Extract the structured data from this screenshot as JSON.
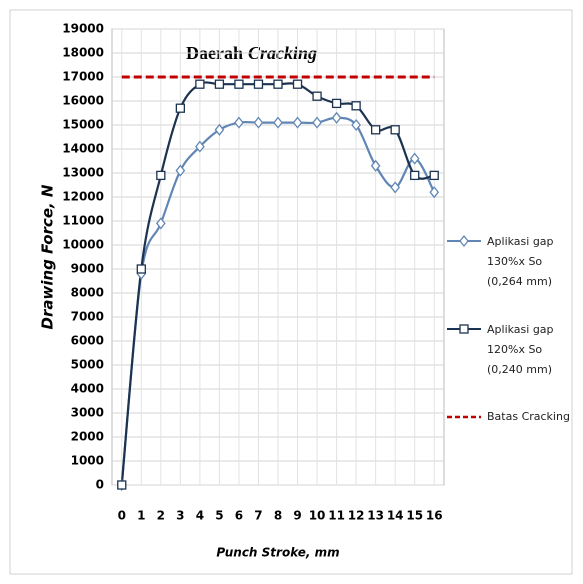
{
  "chart_data": {
    "type": "line",
    "annotation": [
      "Daerah",
      "Cracking"
    ],
    "x_label": "Punch Stroke, mm",
    "y_label": "Drawing Force, N",
    "x": [
      0,
      1,
      2,
      3,
      4,
      5,
      6,
      7,
      8,
      9,
      10,
      11,
      12,
      13,
      14,
      15,
      16
    ],
    "xlim": [
      -0.5,
      16.5
    ],
    "xticks": [
      0,
      1,
      2,
      3,
      4,
      5,
      6,
      7,
      8,
      9,
      10,
      11,
      12,
      13,
      14,
      15,
      16
    ],
    "ylim": [
      0,
      19000
    ],
    "yticks": [
      0,
      1000,
      2000,
      3000,
      4000,
      5000,
      6000,
      7000,
      8000,
      9000,
      10000,
      11000,
      12000,
      13000,
      14000,
      15000,
      16000,
      17000,
      18000,
      19000
    ],
    "grid": true,
    "series": [
      {
        "name": "Aplikasi gap 130%x So (0,264 mm)",
        "color": "#6186b5",
        "marker": "diamond",
        "values": [
          0,
          8800,
          10900,
          13100,
          14100,
          14800,
          15100,
          15100,
          15100,
          15100,
          15100,
          15300,
          15000,
          13300,
          12400,
          13600,
          12200
        ]
      },
      {
        "name": "Aplikasi gap 120%x So (0,240 mm)",
        "color": "#1c3350",
        "marker": "square",
        "values": [
          0,
          9000,
          12900,
          15700,
          16700,
          16700,
          16700,
          16700,
          16700,
          16700,
          16200,
          15900,
          15800,
          14800,
          14800,
          12900,
          12900
        ]
      }
    ],
    "threshold": {
      "name": "Batas Cracking",
      "value": 17000,
      "color": "#c00000"
    }
  }
}
